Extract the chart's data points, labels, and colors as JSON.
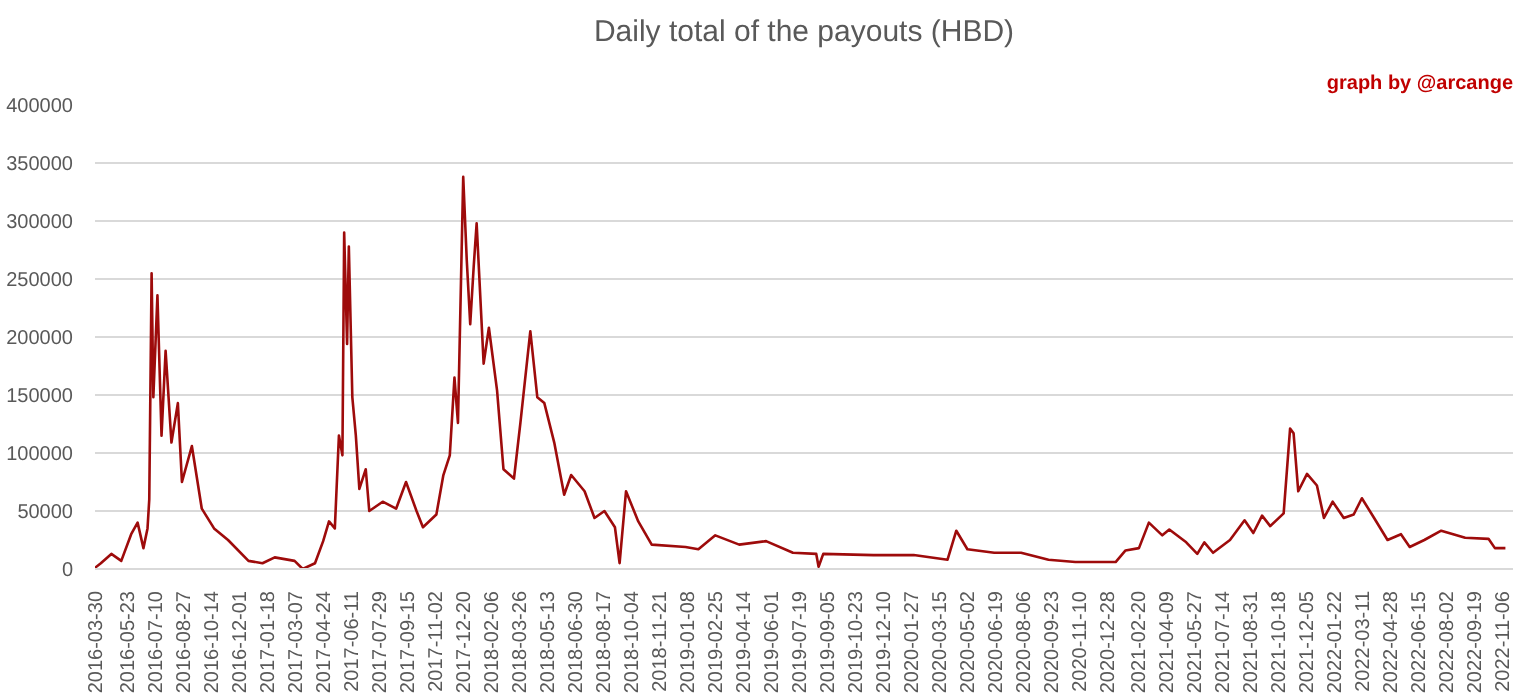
{
  "chart_data": {
    "type": "line",
    "title": "Daily total of the payouts (HBD)",
    "annotations": [
      "graph by @arcange"
    ],
    "x": [
      "2016-03-30",
      "2016-04-09",
      "2016-04-27",
      "2016-05-14",
      "2016-05-31",
      "2016-06-11",
      "2016-06-21",
      "2016-06-28",
      "2016-07-01",
      "2016-07-05",
      "2016-07-08",
      "2016-07-15",
      "2016-07-22",
      "2016-07-29",
      "2016-08-08",
      "2016-08-19",
      "2016-08-26",
      "2016-09-12",
      "2016-09-29",
      "2016-10-20",
      "2016-11-13",
      "2016-12-18",
      "2017-01-11",
      "2017-02-01",
      "2017-03-07",
      "2017-03-21",
      "2017-04-11",
      "2017-04-25",
      "2017-05-05",
      "2017-05-15",
      "2017-05-22",
      "2017-05-28",
      "2017-05-31",
      "2017-06-05",
      "2017-06-08",
      "2017-06-14",
      "2017-06-20",
      "2017-06-26",
      "2017-07-07",
      "2017-07-13",
      "2017-08-05",
      "2017-08-28",
      "2017-09-14",
      "2017-10-02",
      "2017-10-13",
      "2017-11-05",
      "2017-11-17",
      "2017-11-28",
      "2017-12-06",
      "2017-12-12",
      "2017-12-21",
      "2017-12-27",
      "2018-01-02",
      "2018-01-08",
      "2018-01-13",
      "2018-01-25",
      "2018-02-03",
      "2018-02-17",
      "2018-02-28",
      "2018-03-18",
      "2018-03-29",
      "2018-04-15",
      "2018-04-27",
      "2018-05-09",
      "2018-05-26",
      "2018-06-12",
      "2018-06-24",
      "2018-07-17",
      "2018-08-03",
      "2018-08-20",
      "2018-09-07",
      "2018-09-15",
      "2018-09-26",
      "2018-10-17",
      "2018-11-09",
      "2019-01-06",
      "2019-01-28",
      "2019-02-26",
      "2019-04-08",
      "2019-05-24",
      "2019-07-09",
      "2019-08-18",
      "2019-08-22",
      "2019-08-30",
      "2019-11-24",
      "2020-02-01",
      "2020-03-30",
      "2020-04-14",
      "2020-05-03",
      "2020-06-18",
      "2020-08-03",
      "2020-09-19",
      "2020-11-04",
      "2021-01-12",
      "2021-01-29",
      "2021-02-21",
      "2021-03-10",
      "2021-04-02",
      "2021-04-14",
      "2021-05-13",
      "2021-06-01",
      "2021-06-13",
      "2021-06-28",
      "2021-07-27",
      "2021-08-21",
      "2021-09-05",
      "2021-09-20",
      "2021-10-04",
      "2021-10-27",
      "2021-11-07",
      "2021-11-13",
      "2021-11-21",
      "2021-12-06",
      "2021-12-23",
      "2022-01-04",
      "2022-01-19",
      "2022-02-07",
      "2022-02-24",
      "2022-03-10",
      "2022-03-31",
      "2022-04-23",
      "2022-05-16",
      "2022-05-31",
      "2022-06-25",
      "2022-07-24",
      "2022-09-03",
      "2022-10-13",
      "2022-10-24",
      "2022-11-11"
    ],
    "series": [
      {
        "color": "#9e0b0b",
        "values": [
          1000,
          5000,
          13000,
          7000,
          30000,
          40000,
          18000,
          35000,
          60000,
          255000,
          148000,
          236000,
          115000,
          188000,
          109000,
          143000,
          75000,
          106000,
          52000,
          35000,
          25000,
          7000,
          5000,
          10000,
          7000,
          0,
          5000,
          24000,
          41000,
          35000,
          115000,
          98000,
          290000,
          194000,
          278000,
          148000,
          115000,
          69000,
          86000,
          50000,
          58000,
          52000,
          75000,
          50000,
          36000,
          47000,
          81000,
          98000,
          165000,
          126000,
          338000,
          267000,
          211000,
          261000,
          298000,
          177000,
          208000,
          154000,
          86000,
          78000,
          126000,
          205000,
          148000,
          143000,
          109000,
          64000,
          81000,
          67000,
          44000,
          50000,
          36000,
          5000,
          67000,
          41000,
          21000,
          19000,
          17000,
          29000,
          21000,
          24000,
          14000,
          13000,
          2000,
          13000,
          12000,
          12000,
          8000,
          33000,
          17000,
          14000,
          14000,
          8000,
          6000,
          6000,
          16000,
          18000,
          40000,
          29000,
          34000,
          23000,
          13000,
          23000,
          14000,
          25000,
          42000,
          31000,
          46000,
          37000,
          48000,
          121000,
          117000,
          67000,
          82000,
          72000,
          44000,
          58000,
          44000,
          47000,
          61000,
          44000,
          25000,
          30000,
          19000,
          25000,
          33000,
          27000,
          26000,
          18000,
          18000
        ]
      }
    ],
    "xlim": [
      "2016-03-30",
      "2022-11-24"
    ],
    "xticks": [
      "2016-03-30",
      "2016-05-23",
      "2016-07-10",
      "2016-08-27",
      "2016-10-14",
      "2016-12-01",
      "2017-01-18",
      "2017-03-07",
      "2017-04-24",
      "2017-06-11",
      "2017-07-29",
      "2017-09-15",
      "2017-11-02",
      "2017-12-20",
      "2018-02-06",
      "2018-03-26",
      "2018-05-13",
      "2018-06-30",
      "2018-08-17",
      "2018-10-04",
      "2018-11-21",
      "2019-01-08",
      "2019-02-25",
      "2019-04-14",
      "2019-06-01",
      "2019-07-19",
      "2019-09-05",
      "2019-10-23",
      "2019-12-10",
      "2020-01-27",
      "2020-03-15",
      "2020-05-02",
      "2020-06-19",
      "2020-08-06",
      "2020-09-23",
      "2020-11-10",
      "2020-12-28",
      "2021-02-20",
      "2021-04-09",
      "2021-05-27",
      "2021-07-14",
      "2021-08-31",
      "2021-10-18",
      "2021-12-05",
      "2022-01-22",
      "2022-03-11",
      "2022-04-28",
      "2022-06-15",
      "2022-08-02",
      "2022-09-19",
      "2022-11-06"
    ],
    "ylim": [
      0,
      400000
    ],
    "yticks": [
      0,
      50000,
      100000,
      150000,
      200000,
      250000,
      300000,
      350000,
      400000
    ],
    "grid": "y",
    "marker": "none",
    "line_style": "solid"
  }
}
